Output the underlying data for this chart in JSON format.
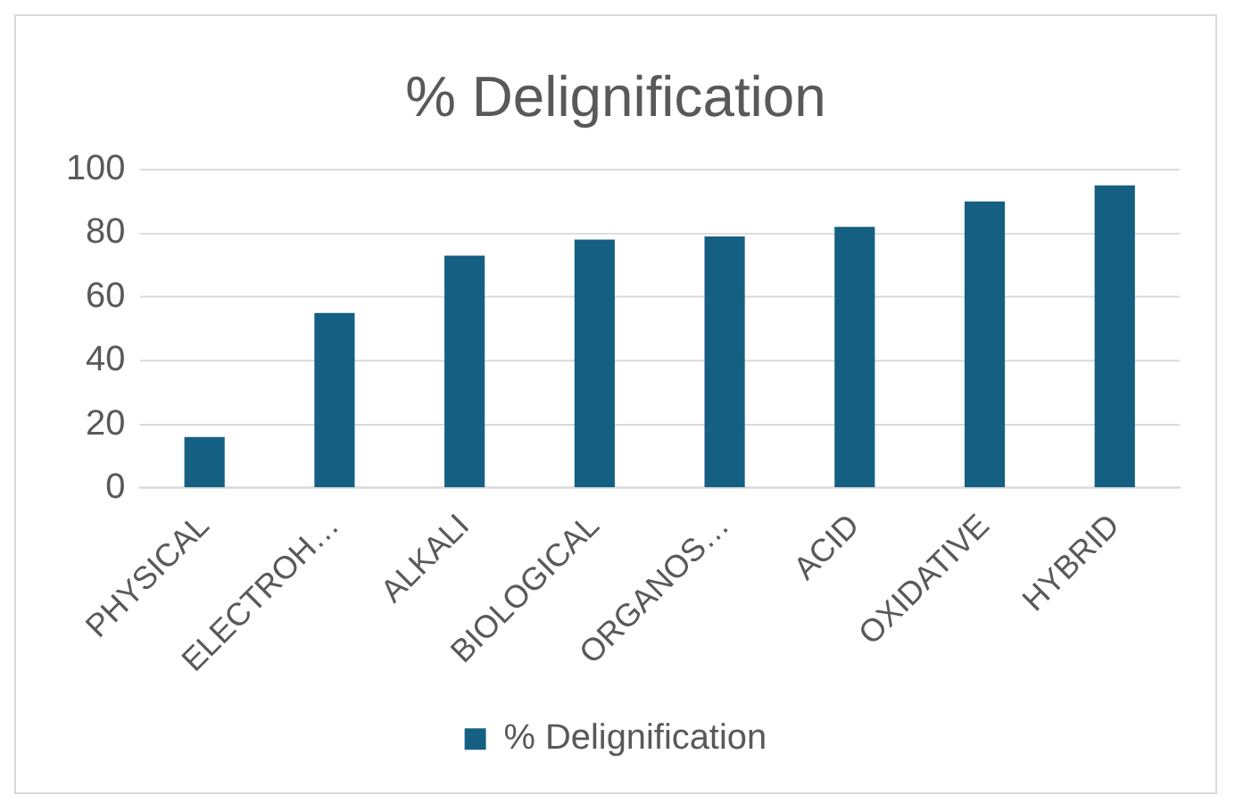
{
  "chart_data": {
    "type": "bar",
    "title": "% Delignification",
    "categories": [
      "PHYSICAL",
      "ELECTROH…",
      "ALKALI",
      "BIOLOGICAL",
      "ORGANOS…",
      "ACID",
      "OXIDATIVE",
      "HYBRID"
    ],
    "series": [
      {
        "name": "% Delignification",
        "color": "#156082",
        "values": [
          16,
          55,
          73,
          78,
          79,
          82,
          90,
          95
        ]
      }
    ],
    "ylim": [
      0,
      100
    ],
    "yticks": [
      0,
      20,
      40,
      60,
      80,
      100
    ],
    "grid": "y",
    "legend": "bottom"
  }
}
